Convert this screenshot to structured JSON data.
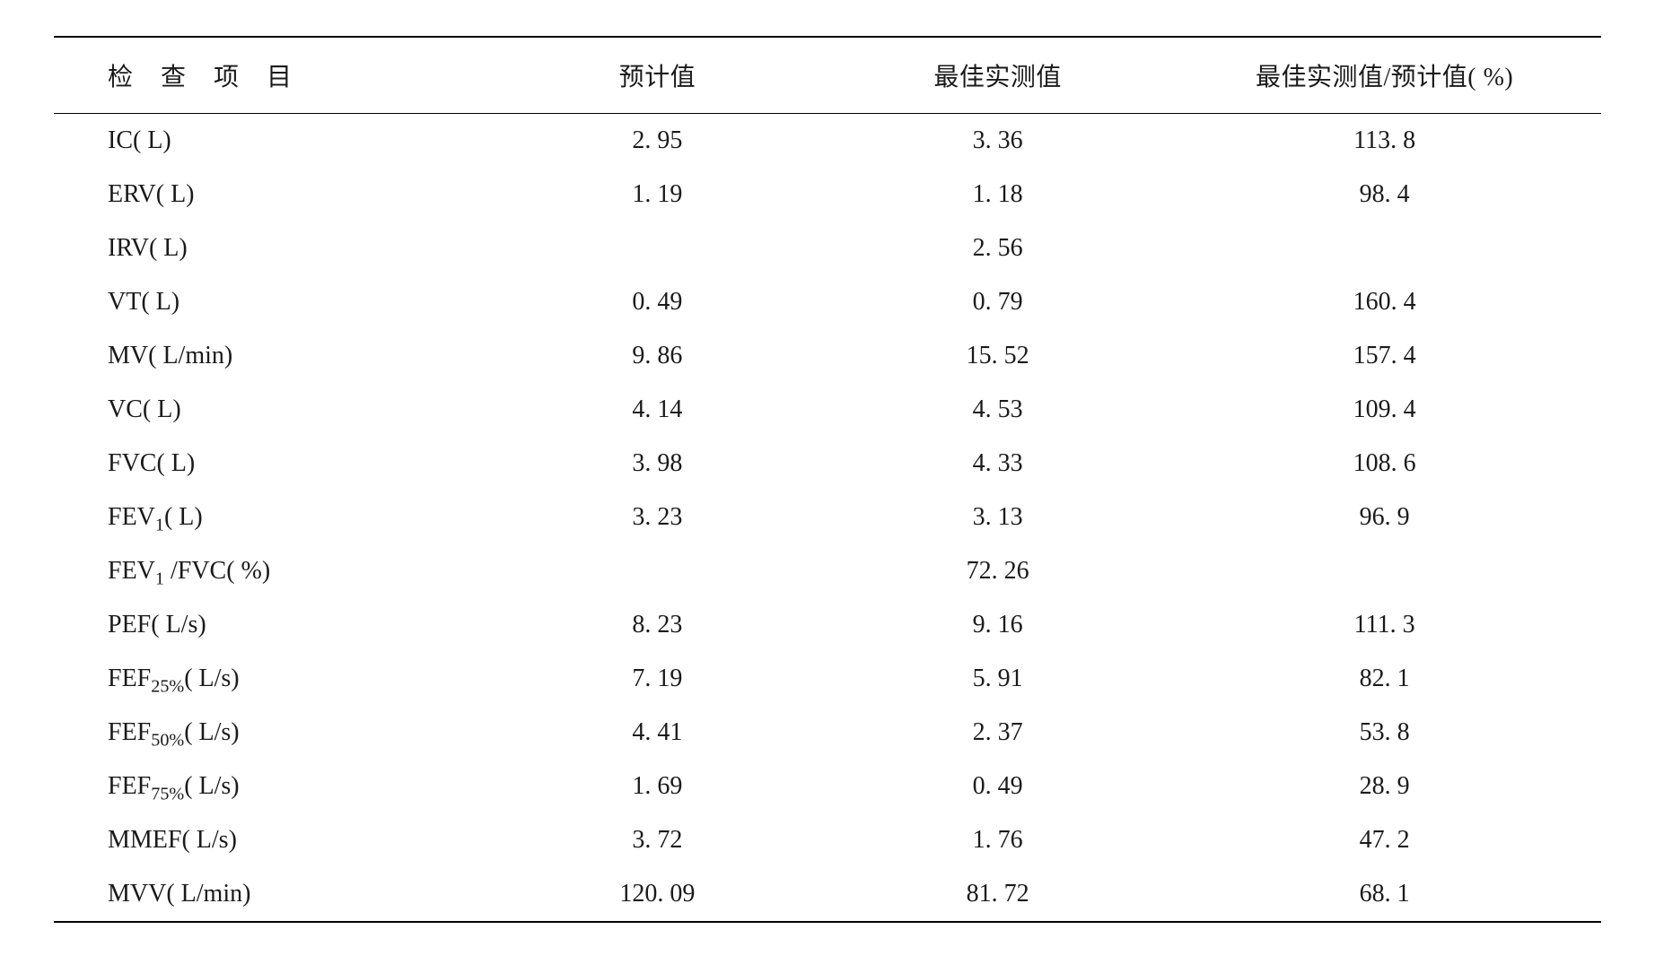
{
  "table": {
    "type": "table",
    "background_color": "#ffffff",
    "text_color": "#1a1a1a",
    "border_color": "#000000",
    "font_family": "Times New Roman / SimSun",
    "header_fontsize_pt": 21,
    "body_fontsize_pt": 21,
    "columns": [
      {
        "key": "item",
        "label": "检 查 项 目",
        "align": "left",
        "width_pct": 28
      },
      {
        "key": "predicted",
        "label": "预计值",
        "align": "center",
        "width_pct": 22
      },
      {
        "key": "measured",
        "label": "最佳实测值",
        "align": "center",
        "width_pct": 22
      },
      {
        "key": "ratio",
        "label": "最佳实测值/预计值( %)",
        "align": "center",
        "width_pct": 28
      }
    ],
    "rows": [
      {
        "item_html": "IC( L)",
        "predicted": "2. 95",
        "measured": "3. 36",
        "ratio": "113. 8"
      },
      {
        "item_html": "ERV( L)",
        "predicted": "1. 19",
        "measured": "1. 18",
        "ratio": "98. 4"
      },
      {
        "item_html": "IRV( L)",
        "predicted": "",
        "measured": "2. 56",
        "ratio": ""
      },
      {
        "item_html": "VT( L)",
        "predicted": "0. 49",
        "measured": "0. 79",
        "ratio": "160. 4"
      },
      {
        "item_html": "MV( L/min)",
        "predicted": "9. 86",
        "measured": "15. 52",
        "ratio": "157. 4"
      },
      {
        "item_html": "VC( L)",
        "predicted": "4. 14",
        "measured": "4. 53",
        "ratio": "109. 4"
      },
      {
        "item_html": "FVC( L)",
        "predicted": "3. 98",
        "measured": "4. 33",
        "ratio": "108. 6"
      },
      {
        "item_html": "FEV<sub>1</sub>( L)",
        "predicted": "3. 23",
        "measured": "3. 13",
        "ratio": "96. 9"
      },
      {
        "item_html": "FEV<sub>1</sub> /FVC( %)",
        "predicted": "",
        "measured": "72. 26",
        "ratio": ""
      },
      {
        "item_html": "PEF( L/s)",
        "predicted": "8. 23",
        "measured": "9. 16",
        "ratio": "111. 3"
      },
      {
        "item_html": "FEF<sub>25%</sub>( L/s)",
        "predicted": "7. 19",
        "measured": "5. 91",
        "ratio": "82. 1"
      },
      {
        "item_html": "FEF<sub>50%</sub>( L/s)",
        "predicted": "4. 41",
        "measured": "2. 37",
        "ratio": "53. 8"
      },
      {
        "item_html": "FEF<sub>75%</sub>( L/s)",
        "predicted": "1. 69",
        "measured": "0. 49",
        "ratio": "28. 9"
      },
      {
        "item_html": "MMEF( L/s)",
        "predicted": "3. 72",
        "measured": "1. 76",
        "ratio": "47. 2"
      },
      {
        "item_html": "MVV( L/min)",
        "predicted": "120. 09",
        "measured": "81. 72",
        "ratio": "68. 1"
      }
    ]
  }
}
